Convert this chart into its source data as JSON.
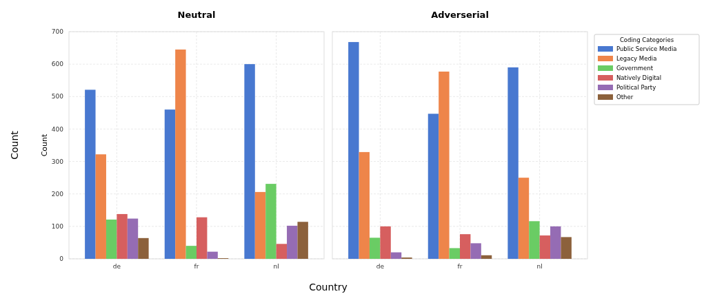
{
  "chart_data": [
    {
      "type": "bar",
      "title": "Neutral",
      "ylabel": "Count",
      "categories": [
        "de",
        "fr",
        "nl"
      ],
      "ylim": [
        0,
        700
      ],
      "yticks": [
        0,
        100,
        200,
        300,
        400,
        500,
        600,
        700
      ],
      "grid": true,
      "legend": false,
      "annotations": [
        "Count",
        "Country"
      ],
      "series": [
        {
          "color": "#4878d0",
          "values": [
            521,
            460,
            600
          ]
        },
        {
          "color": "#ee854a",
          "values": [
            322,
            645,
            206
          ]
        },
        {
          "color": "#6acc64",
          "values": [
            121,
            40,
            231
          ]
        },
        {
          "color": "#d65f5f",
          "values": [
            138,
            128,
            46
          ]
        },
        {
          "color": "#956cb4",
          "values": [
            124,
            22,
            102
          ]
        },
        {
          "color": "#8c613c",
          "values": [
            64,
            2,
            114
          ]
        }
      ]
    },
    {
      "type": "bar",
      "title": "Adverserial",
      "categories": [
        "de",
        "fr",
        "nl"
      ],
      "ylim": [
        0,
        700
      ],
      "yticks": [
        0,
        100,
        200,
        300,
        400,
        500,
        600,
        700
      ],
      "tick_labels": "x",
      "grid": true,
      "legend": "right",
      "legend_title": "Coding Categories",
      "series": [
        {
          "name": "Public Service Media",
          "color": "#4878d0",
          "values": [
            668,
            447,
            590
          ]
        },
        {
          "name": "Legacy Media",
          "color": "#ee854a",
          "values": [
            329,
            577,
            250
          ]
        },
        {
          "name": "Government",
          "color": "#6acc64",
          "values": [
            65,
            33,
            116
          ]
        },
        {
          "name": "Natively Digital",
          "color": "#d65f5f",
          "values": [
            100,
            76,
            72
          ]
        },
        {
          "name": "Political Party",
          "color": "#956cb4",
          "values": [
            20,
            48,
            100
          ]
        },
        {
          "name": "Other",
          "color": "#8c613c",
          "values": [
            4,
            11,
            67
          ]
        }
      ]
    }
  ]
}
